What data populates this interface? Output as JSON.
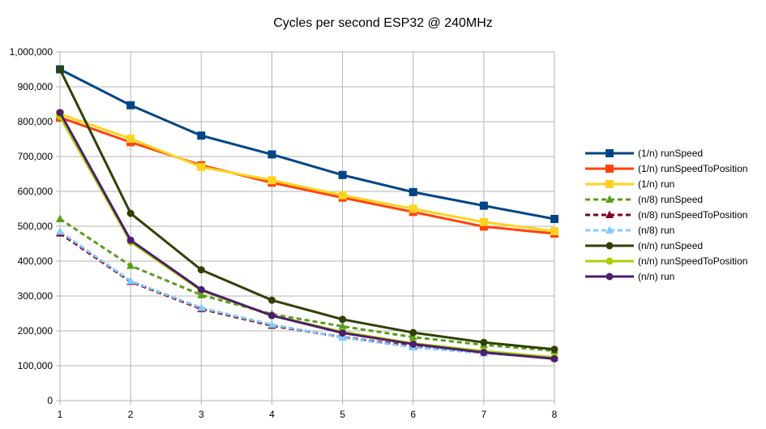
{
  "chart_data": {
    "type": "line",
    "title": "Cycles per second ESP32 @ 240MHz",
    "xlabel": "",
    "ylabel": "",
    "x": [
      1,
      2,
      3,
      4,
      5,
      6,
      7,
      8
    ],
    "ylim": [
      0,
      1000000
    ],
    "y_ticks": [
      "0",
      "100,000",
      "200,000",
      "300,000",
      "400,000",
      "500,000",
      "600,000",
      "700,000",
      "800,000",
      "900,000",
      "1,000,000"
    ],
    "x_ticks": [
      "1",
      "2",
      "3",
      "4",
      "5",
      "6",
      "7",
      "8"
    ],
    "grid": true,
    "legend_position": "right",
    "series": [
      {
        "name": "(1/n) runSpeed",
        "color": "#004586",
        "marker": "square",
        "dash": false,
        "values": [
          950000,
          847000,
          760000,
          706000,
          647000,
          598000,
          559000,
          521000
        ]
      },
      {
        "name": "(1/n) runSpeedToPosition",
        "color": "#ff420e",
        "marker": "square",
        "dash": false,
        "values": [
          812000,
          741000,
          675000,
          625000,
          582000,
          541000,
          499000,
          479000
        ]
      },
      {
        "name": "(1/n) run",
        "color": "#ffd320",
        "marker": "square",
        "dash": false,
        "values": [
          822000,
          751000,
          670000,
          632000,
          589000,
          550000,
          512000,
          486000
        ]
      },
      {
        "name": "(n/8) runSpeed",
        "color": "#579d1c",
        "marker": "triangle",
        "dash": true,
        "values": [
          521000,
          387000,
          303000,
          248000,
          213000,
          182000,
          160000,
          143000
        ]
      },
      {
        "name": "(n/8) runSpeedToPosition",
        "color": "#7e0021",
        "marker": "triangle",
        "dash": true,
        "values": [
          480000,
          341000,
          263000,
          215000,
          182000,
          156000,
          137000,
          123000
        ]
      },
      {
        "name": "(n/8) run",
        "color": "#83caff",
        "marker": "triangle",
        "dash": true,
        "values": [
          485000,
          343000,
          266000,
          218000,
          181000,
          153000,
          136000,
          122000
        ]
      },
      {
        "name": "(n/n) runSpeed",
        "color": "#314004",
        "marker": "circle",
        "dash": false,
        "values": [
          950000,
          537000,
          375000,
          288000,
          233000,
          195000,
          167000,
          147000
        ]
      },
      {
        "name": "(n/n) runSpeedToPosition",
        "color": "#aecf00",
        "marker": "circle",
        "dash": false,
        "values": [
          815000,
          455000,
          316000,
          244000,
          197000,
          164000,
          142000,
          124000
        ]
      },
      {
        "name": "(n/n) run",
        "color": "#4b1f6f",
        "marker": "circle",
        "dash": false,
        "values": [
          826000,
          460000,
          318000,
          244000,
          194000,
          162000,
          138000,
          120000
        ]
      }
    ]
  }
}
